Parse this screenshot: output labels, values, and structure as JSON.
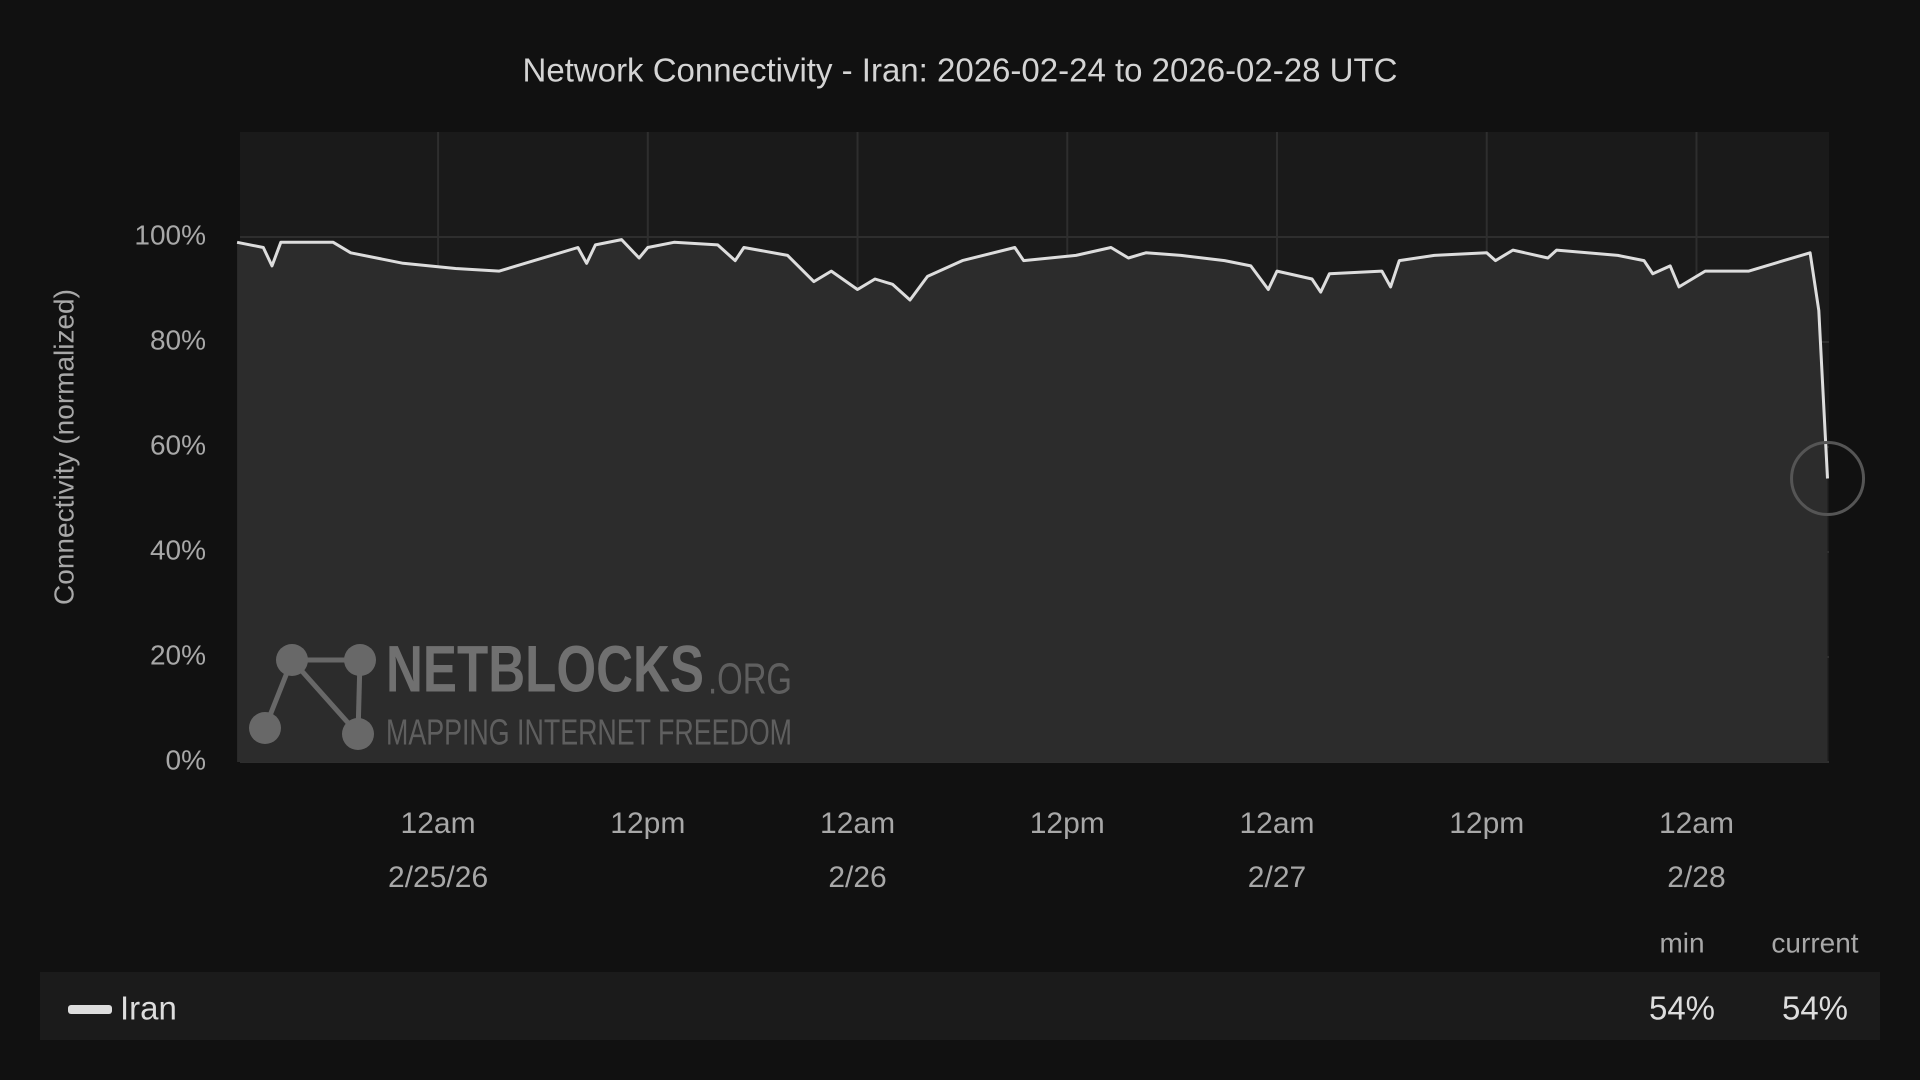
{
  "chart_data": {
    "type": "line",
    "title": "Network Connectivity - Iran: 2026-02-24 to 2026-02-28 UTC",
    "y_label": "Connectivity (normalized)",
    "xlim": [
      "2026-02-24T12:40",
      "2026-02-28T07:35"
    ],
    "xticks": [
      {
        "value": "2026-02-25T00:00",
        "label": "12am\n2/25/26"
      },
      {
        "value": "2026-02-25T12:00",
        "label": "12pm"
      },
      {
        "value": "2026-02-26T00:00",
        "label": "12am\n2/26"
      },
      {
        "value": "2026-02-26T12:00",
        "label": "12pm"
      },
      {
        "value": "2026-02-27T00:00",
        "label": "12am\n2/27"
      },
      {
        "value": "2026-02-27T12:00",
        "label": "12pm"
      },
      {
        "value": "2026-02-28T00:00",
        "label": "12am\n2/28"
      }
    ],
    "ylim": [
      0,
      120
    ],
    "yticks": [
      {
        "value": 0,
        "label": "0%"
      },
      {
        "value": 20,
        "label": "20%"
      },
      {
        "value": 40,
        "label": "40%"
      },
      {
        "value": 60,
        "label": "60%"
      },
      {
        "value": 80,
        "label": "80%"
      },
      {
        "value": 100,
        "label": "100%"
      }
    ],
    "grid": true,
    "x": [
      "2026-02-24T12:30",
      "2026-02-24T14:00",
      "2026-02-24T14:30",
      "2026-02-24T15:00",
      "2026-02-24T18:00",
      "2026-02-24T19:00",
      "2026-02-24T22:00",
      "2026-02-25T01:00",
      "2026-02-25T03:30",
      "2026-02-25T05:30",
      "2026-02-25T08:00",
      "2026-02-25T08:30",
      "2026-02-25T09:00",
      "2026-02-25T10:30",
      "2026-02-25T11:30",
      "2026-02-25T12:00",
      "2026-02-25T13:30",
      "2026-02-25T16:00",
      "2026-02-25T17:00",
      "2026-02-25T17:30",
      "2026-02-25T20:00",
      "2026-02-25T21:30",
      "2026-02-25T22:30",
      "2026-02-26T00:00",
      "2026-02-26T01:00",
      "2026-02-26T02:00",
      "2026-02-26T03:00",
      "2026-02-26T04:00",
      "2026-02-26T06:00",
      "2026-02-26T09:00",
      "2026-02-26T09:30",
      "2026-02-26T12:30",
      "2026-02-26T14:30",
      "2026-02-26T15:30",
      "2026-02-26T16:30",
      "2026-02-26T18:30",
      "2026-02-26T21:00",
      "2026-02-26T22:30",
      "2026-02-26T23:30",
      "2026-02-27T00:00",
      "2026-02-27T02:00",
      "2026-02-27T02:30",
      "2026-02-27T03:00",
      "2026-02-27T06:00",
      "2026-02-27T06:30",
      "2026-02-27T07:00",
      "2026-02-27T09:00",
      "2026-02-27T12:00",
      "2026-02-27T12:30",
      "2026-02-27T13:30",
      "2026-02-27T15:30",
      "2026-02-27T16:00",
      "2026-02-27T19:30",
      "2026-02-27T21:00",
      "2026-02-27T21:30",
      "2026-02-27T22:30",
      "2026-02-27T23:00",
      "2026-02-28T00:30",
      "2026-02-28T03:00",
      "2026-02-28T05:00",
      "2026-02-28T06:30",
      "2026-02-28T07:00",
      "2026-02-28T07:30"
    ],
    "series": [
      {
        "name": "Iran",
        "color": "#dddddd",
        "values": [
          99,
          98,
          94.5,
          99,
          99,
          97,
          95,
          94,
          93.5,
          95.5,
          98,
          95,
          98.5,
          99.5,
          96,
          98,
          99,
          98.5,
          95.5,
          98,
          96.5,
          91.5,
          93.5,
          90,
          92,
          91,
          88,
          92.5,
          95.5,
          98,
          95.5,
          96.5,
          98,
          96,
          97,
          96.5,
          95.5,
          94.5,
          90,
          93.5,
          92,
          89.5,
          93,
          93.5,
          90.5,
          95.5,
          96.5,
          97,
          95.5,
          97.5,
          96,
          97.5,
          96.5,
          95.5,
          93,
          94.5,
          90.5,
          93.5,
          93.5,
          95.5,
          97,
          86,
          54
        ],
        "stats": [
          {
            "value": 54,
            "label": "54%"
          },
          {
            "value": 54,
            "label": "54%"
          }
        ]
      }
    ],
    "stat_names": [
      "min",
      "current"
    ],
    "watermark": {
      "name": "NETBLOCKS",
      "suffix": ".ORG",
      "tagline": "MAPPING INTERNET FREEDOM"
    }
  }
}
